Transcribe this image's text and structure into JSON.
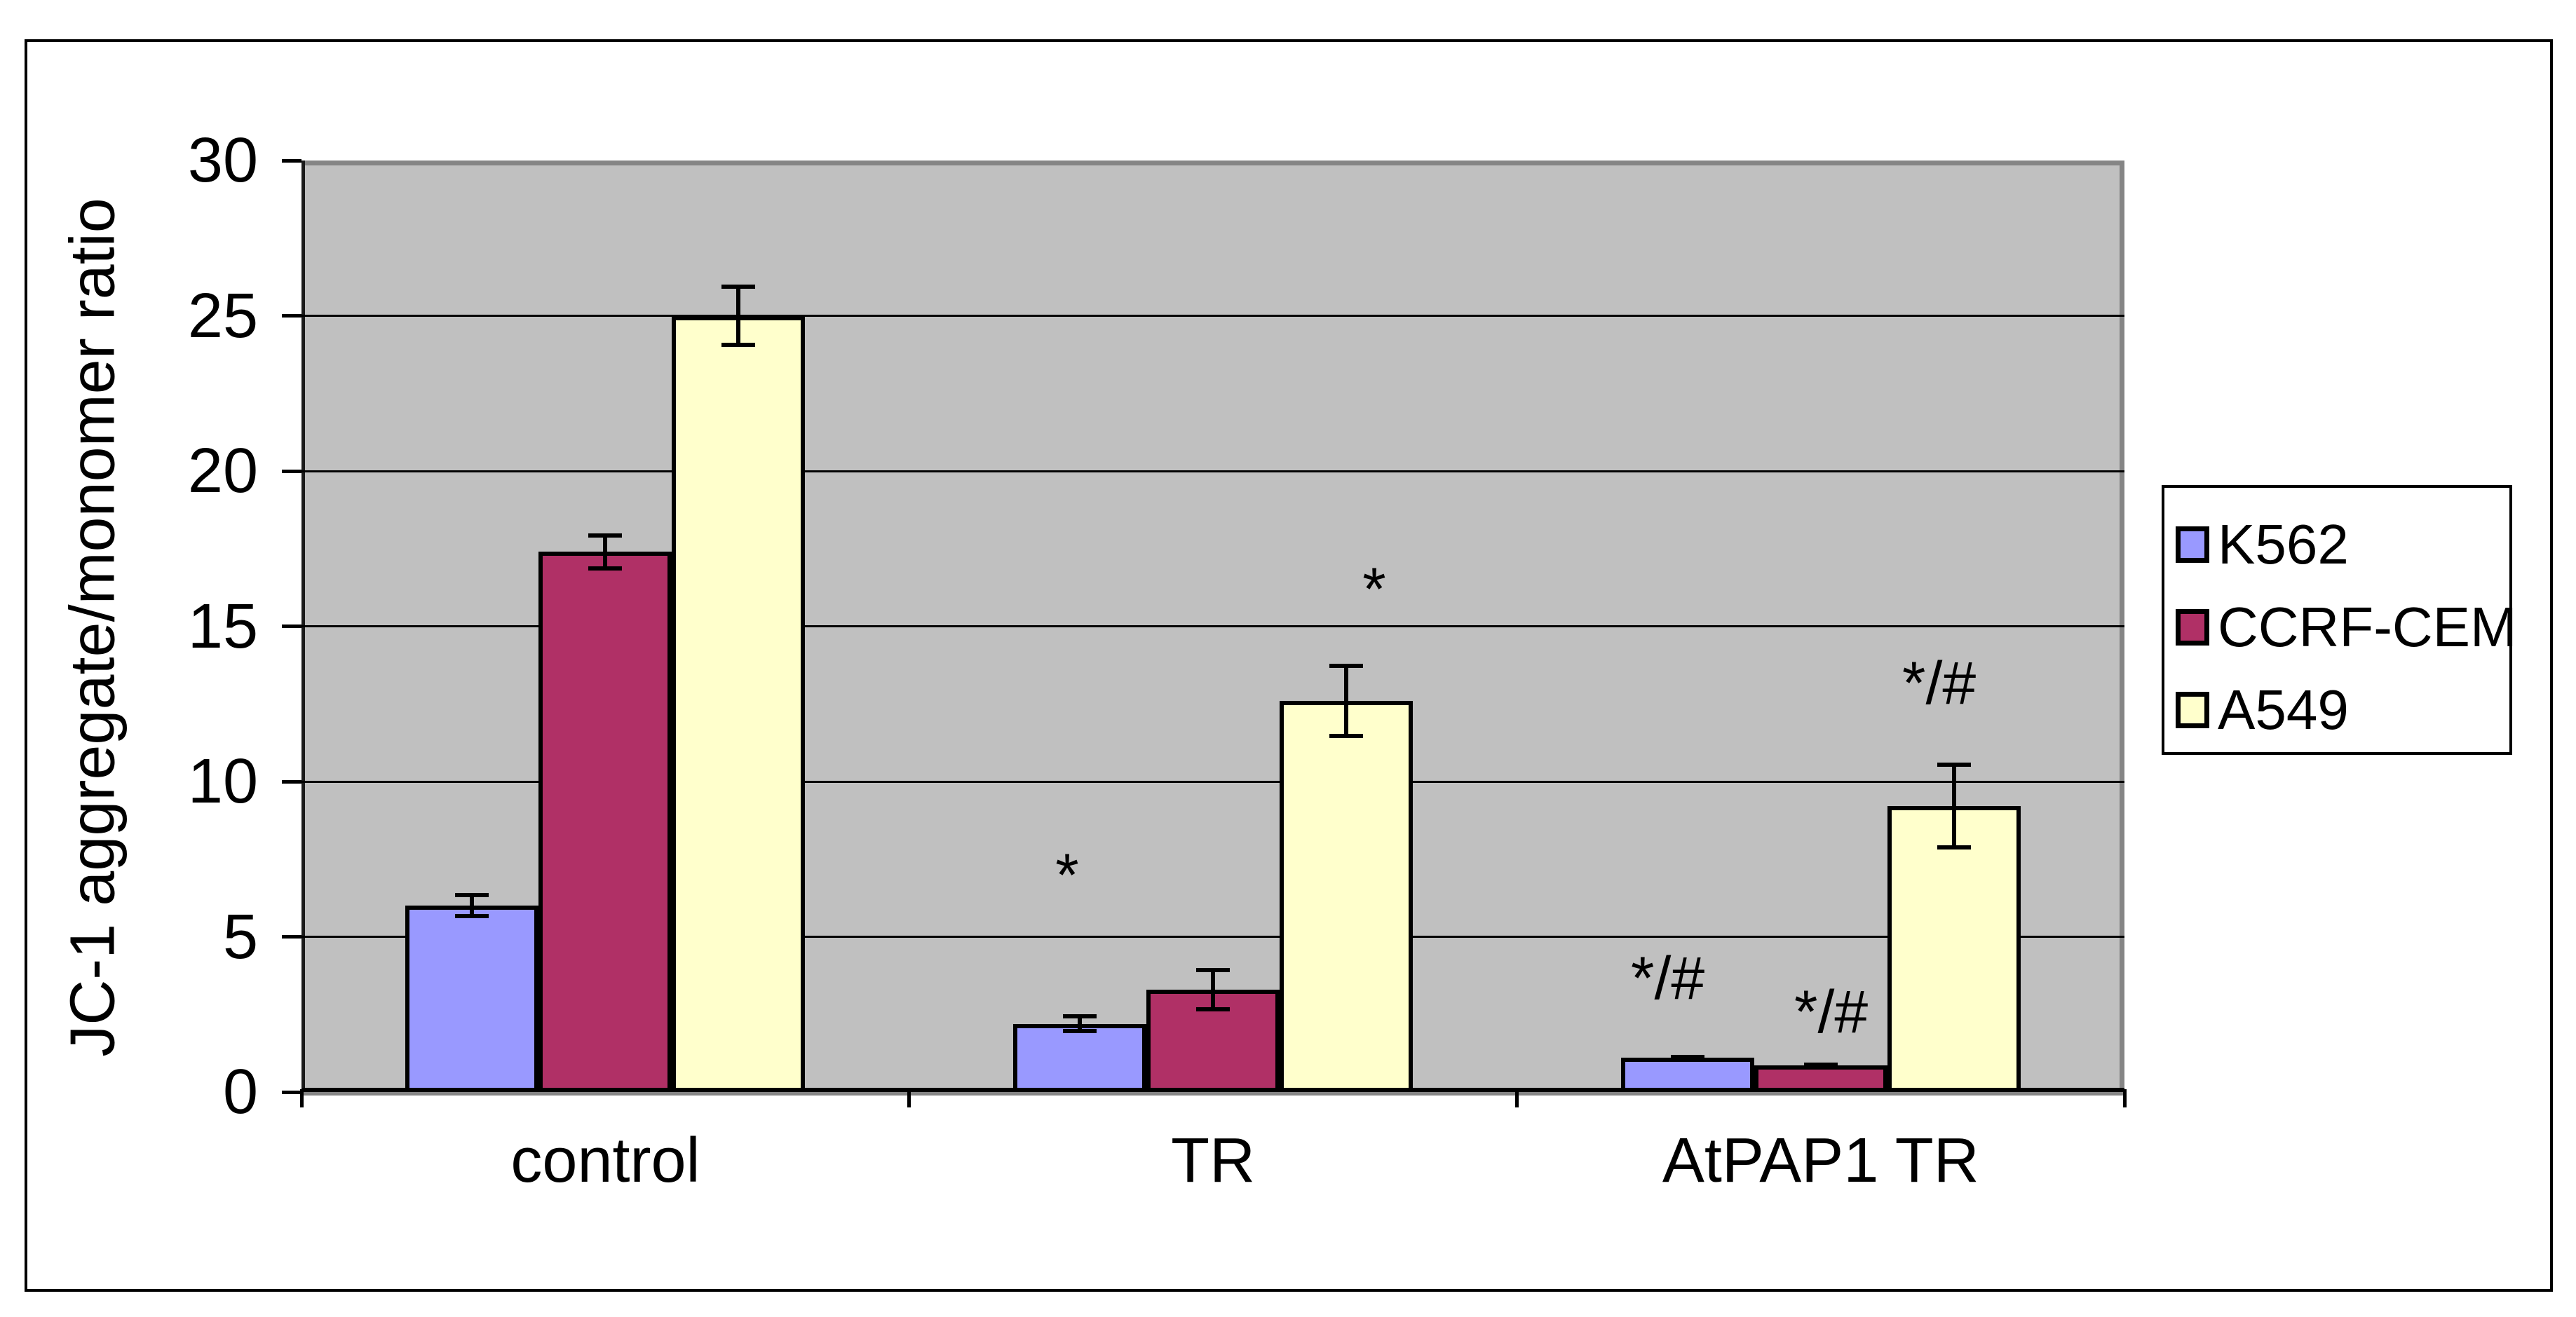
{
  "chart_data": {
    "type": "bar",
    "title": "",
    "xlabel": "",
    "ylabel": "JC-1 aggregate/monomer ratio",
    "ylim": [
      0,
      30
    ],
    "yticks": [
      0,
      5,
      10,
      15,
      20,
      25,
      30
    ],
    "grid": "horizontal",
    "legend_position": "right",
    "categories": [
      "control",
      "TR",
      "AtPAP1 TR"
    ],
    "series": [
      {
        "name": "K562",
        "color": "#9999ff",
        "values": [
          6.0,
          2.2,
          1.1
        ],
        "errors": [
          0.4,
          0.3,
          0.1
        ]
      },
      {
        "name": "CCRF-CEM",
        "color": "#b03066",
        "values": [
          17.4,
          3.3,
          0.85
        ],
        "errors": [
          0.6,
          0.7,
          0.1
        ]
      },
      {
        "name": "A549",
        "color": "#ffffcc",
        "values": [
          25.0,
          12.6,
          9.2
        ],
        "errors": [
          1.0,
          1.2,
          1.4
        ]
      }
    ],
    "annotations": [
      {
        "text": "*",
        "category": "TR",
        "series": "K562",
        "value": 7.3,
        "dx": -18
      },
      {
        "text": "*",
        "category": "TR",
        "series": "A549",
        "value": 16.5,
        "dx": 40
      },
      {
        "text": "*/#",
        "category": "AtPAP1 TR",
        "series": "K562",
        "value": 3.8,
        "dx": -28
      },
      {
        "text": "*/#",
        "category": "AtPAP1 TR",
        "series": "CCRF-CEM",
        "value": 2.7,
        "dx": 15
      },
      {
        "text": "*/#",
        "category": "AtPAP1 TR",
        "series": "A549",
        "value": 13.3,
        "dx": -21
      }
    ],
    "colors": {
      "plot_background": "#c0c0c0",
      "gridline": "#000000",
      "plot_border": "#858585",
      "axis": "#000000",
      "figure_border": "#000000",
      "text": "#000000"
    }
  }
}
